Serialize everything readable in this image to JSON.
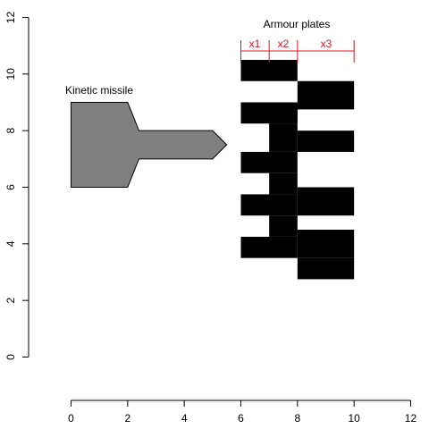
{
  "diagram": {
    "missile_label": "Kinetic missile",
    "plates_label": "Armour plates",
    "dimension_labels": [
      "x1",
      "x2",
      "x3"
    ],
    "x_axis": {
      "range": [
        0,
        12
      ],
      "ticks": [
        "0",
        "2",
        "4",
        "6",
        "8",
        "10",
        "12"
      ]
    },
    "y_axis": {
      "range": [
        0,
        12
      ],
      "ticks": [
        "0",
        "2",
        "4",
        "6",
        "8",
        "10",
        "12"
      ]
    },
    "colors": {
      "missile_fill": "#808080",
      "plate_fill": "#000000",
      "dimension": "#e0141e",
      "axis": "#000000",
      "text": "#000000"
    },
    "missile_outline": [
      [
        0,
        9
      ],
      [
        2,
        9
      ],
      [
        2.4,
        8
      ],
      [
        5,
        8
      ],
      [
        5.5,
        7.5
      ],
      [
        5,
        7
      ],
      [
        2.4,
        7
      ],
      [
        2,
        6
      ],
      [
        0,
        6
      ]
    ],
    "plates": [
      {
        "x": [
          6,
          8
        ],
        "y": [
          9.75,
          10.5
        ]
      },
      {
        "x": [
          8,
          10
        ],
        "y": [
          9.75,
          8.75
        ]
      },
      {
        "x": [
          6,
          8
        ],
        "y": [
          8.25,
          9
        ]
      },
      {
        "x": [
          7,
          8
        ],
        "y": [
          8.25,
          7.25
        ]
      },
      {
        "x": [
          8,
          10
        ],
        "y": [
          7.25,
          8
        ]
      },
      {
        "x": [
          6,
          8
        ],
        "y": [
          6.5,
          7.25
        ]
      },
      {
        "x": [
          7,
          8
        ],
        "y": [
          6.5,
          5.75
        ]
      },
      {
        "x": [
          8,
          10
        ],
        "y": [
          5,
          6
        ]
      },
      {
        "x": [
          6,
          8
        ],
        "y": [
          5,
          5.75
        ]
      },
      {
        "x": [
          7,
          8
        ],
        "y": [
          5,
          4.25
        ]
      },
      {
        "x": [
          8,
          10
        ],
        "y": [
          3.5,
          4.5
        ]
      },
      {
        "x": [
          6,
          8
        ],
        "y": [
          4.25,
          3.5
        ]
      },
      {
        "x": [
          8,
          10
        ],
        "y": [
          2.75,
          3.5
        ]
      },
      {
        "x": [
          7,
          8
        ],
        "y": [
          9,
          8.25
        ]
      }
    ],
    "dimension_ticks": [
      6,
      7,
      8,
      10
    ]
  }
}
